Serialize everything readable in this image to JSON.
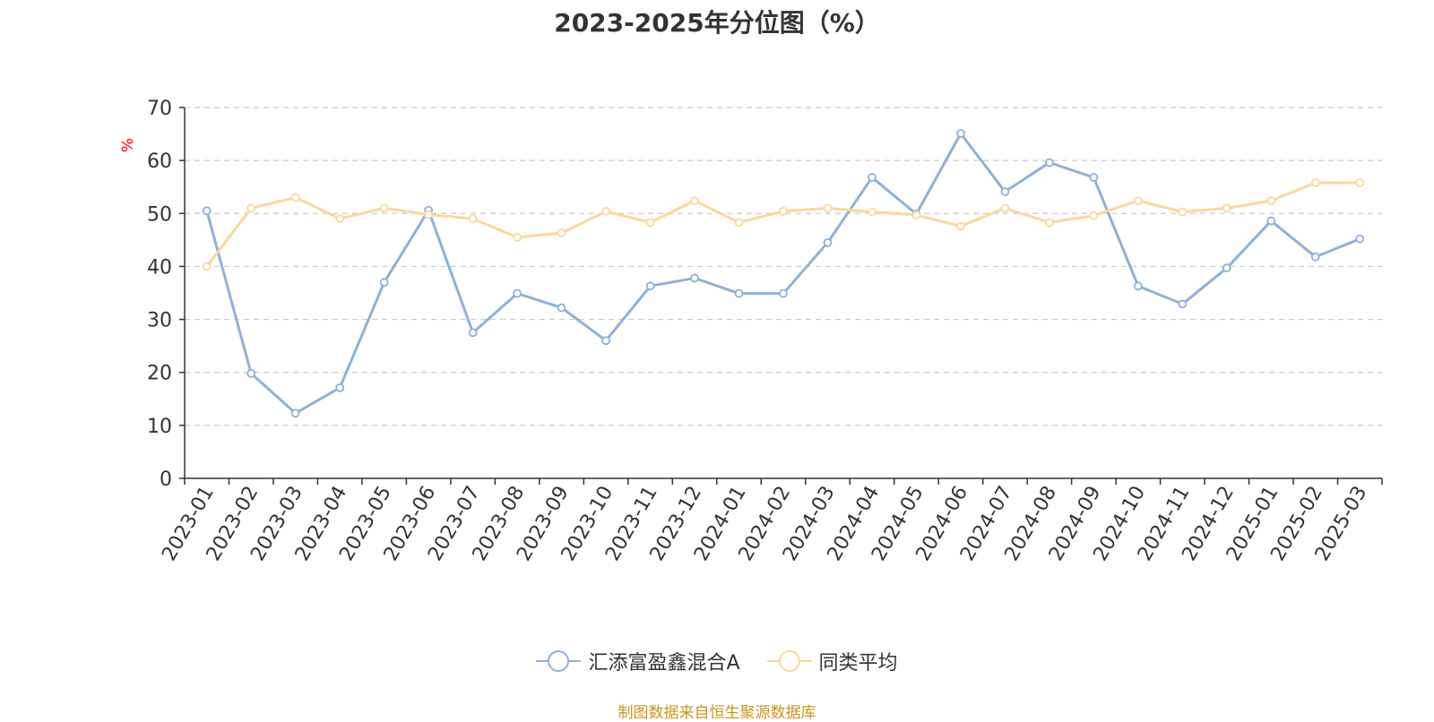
{
  "chart_data": {
    "type": "line",
    "title": "2023-2025年分位图（%）",
    "ylabel": "%",
    "xlabel": "",
    "ylim": [
      0,
      70
    ],
    "yticks": [
      0,
      10,
      20,
      30,
      40,
      50,
      60,
      70
    ],
    "grid": true,
    "legend_position": "bottom",
    "categories": [
      "2023-01",
      "2023-02",
      "2023-03",
      "2023-04",
      "2023-05",
      "2023-06",
      "2023-07",
      "2023-08",
      "2023-09",
      "2023-10",
      "2023-11",
      "2023-12",
      "2024-01",
      "2024-02",
      "2024-03",
      "2024-04",
      "2024-05",
      "2024-06",
      "2024-07",
      "2024-08",
      "2024-09",
      "2024-10",
      "2024-11",
      "2024-12",
      "2025-01",
      "2025-02",
      "2025-03"
    ],
    "series": [
      {
        "name": "汇添富盈鑫混合A",
        "color": "#8eb0dc",
        "values": [
          50.5,
          19.8,
          12.3,
          17.1,
          37.0,
          50.6,
          27.5,
          34.9,
          32.2,
          26.0,
          36.3,
          37.8,
          34.9,
          34.9,
          44.5,
          56.8,
          49.9,
          65.1,
          54.1,
          59.6,
          56.8,
          36.3,
          32.9,
          39.7,
          48.6,
          41.8,
          45.2
        ]
      },
      {
        "name": "同类平均",
        "color": "#fbd79a",
        "values": [
          40.0,
          51.0,
          53.0,
          49.0,
          51.0,
          49.8,
          49.0,
          45.5,
          46.3,
          50.4,
          48.3,
          52.4,
          48.3,
          50.4,
          51.0,
          50.3,
          49.7,
          47.6,
          51.0,
          48.3,
          49.6,
          52.4,
          50.3,
          51.0,
          52.4,
          55.8,
          55.8
        ]
      }
    ]
  },
  "source_text": "制图数据来自恒生聚源数据库",
  "colors": {
    "axis": "#333333",
    "grid": "#cccccc",
    "ylabel": "#ff0000",
    "source": "#c8961e"
  }
}
